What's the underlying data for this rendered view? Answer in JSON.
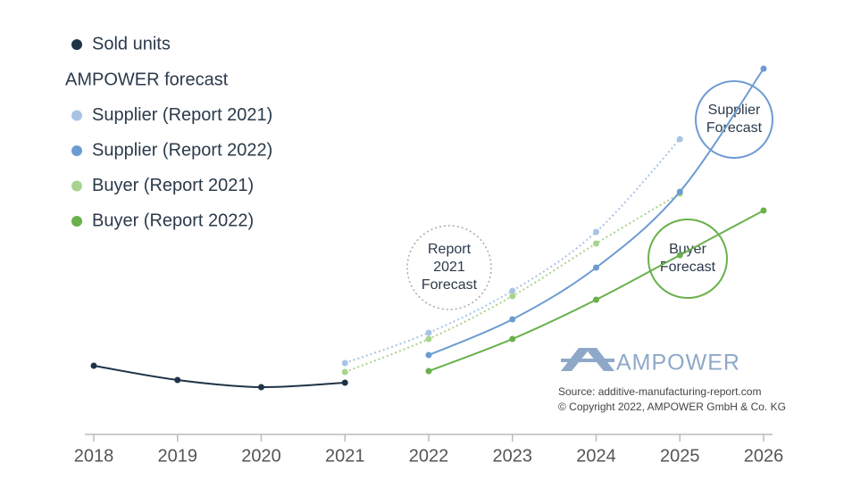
{
  "chart_data": {
    "type": "line",
    "categories": [
      "2018",
      "2019",
      "2020",
      "2021",
      "2022",
      "2023",
      "2024",
      "2025",
      "2026"
    ],
    "ylim": [
      0,
      420
    ],
    "legend_heading": "AMPOWER forecast",
    "series": [
      {
        "name": "Sold units",
        "color": "#1f3347",
        "style": "solid",
        "values": [
          77,
          61,
          53,
          58,
          null,
          null,
          null,
          null,
          null
        ]
      },
      {
        "name": "Supplier (Report 2021)",
        "color": "#a8c4e4",
        "style": "dotted",
        "values": [
          null,
          null,
          null,
          80,
          114,
          161,
          227,
          331,
          null
        ]
      },
      {
        "name": "Supplier (Report 2022)",
        "color": "#6c9bd2",
        "style": "solid",
        "values": [
          null,
          null,
          null,
          null,
          89,
          129,
          187,
          272,
          410
        ]
      },
      {
        "name": "Buyer (Report 2021)",
        "color": "#a8d48f",
        "style": "dotted",
        "values": [
          null,
          null,
          null,
          70,
          107,
          155,
          214,
          270,
          null
        ]
      },
      {
        "name": "Buyer (Report 2022)",
        "color": "#6ab04c",
        "style": "solid",
        "values": [
          null,
          null,
          null,
          null,
          71,
          107,
          151,
          201,
          251
        ]
      }
    ],
    "annotations": [
      {
        "lines": [
          "Supplier",
          "Forecast"
        ],
        "color": "#6c9bd2",
        "style": "solid"
      },
      {
        "lines": [
          "Buyer",
          "Forecast"
        ],
        "color": "#6ab04c",
        "style": "solid"
      },
      {
        "lines": [
          "Report",
          "2021",
          "Forecast"
        ],
        "color": "#aaaaaa",
        "style": "dotted"
      }
    ],
    "logo": "AMPOWER",
    "source": [
      "Source: additive-manufacturing-report.com",
      "© Copyright 2022, AMPOWER GmbH & Co. KG"
    ]
  }
}
